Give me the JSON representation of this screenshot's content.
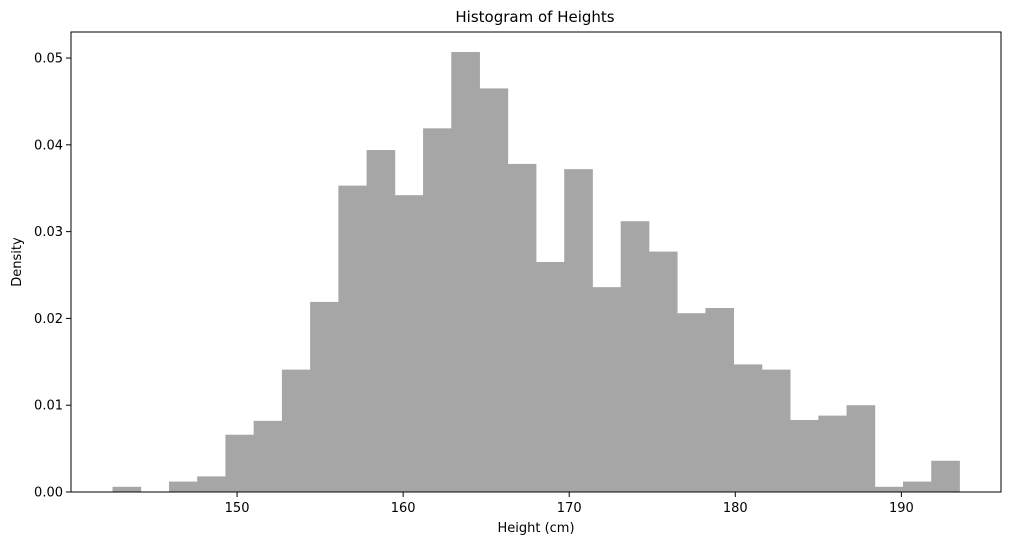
{
  "chart_data": {
    "type": "bar",
    "title": "Histogram of Heights",
    "xlabel": "Height (cm)",
    "ylabel": "Density",
    "xlim": [
      140.0,
      196.0
    ],
    "ylim": [
      0,
      0.053
    ],
    "xticks": [
      "150",
      "160",
      "170",
      "180",
      "190"
    ],
    "yticks": [
      "0.00",
      "0.01",
      "0.02",
      "0.03",
      "0.04",
      "0.05"
    ],
    "bin_start": 142.5,
    "bin_width": 1.7,
    "values": [
      0.0006,
      0.0,
      0.0012,
      0.0018,
      0.0066,
      0.0082,
      0.0141,
      0.0219,
      0.0353,
      0.0394,
      0.0342,
      0.0419,
      0.0507,
      0.0465,
      0.0378,
      0.0265,
      0.0372,
      0.0236,
      0.0312,
      0.0277,
      0.0206,
      0.0212,
      0.0147,
      0.0141,
      0.0083,
      0.0088,
      0.01,
      0.0006,
      0.0012,
      0.0036
    ],
    "bar_color": "#a6a6a6",
    "grid": false,
    "legend": "none"
  }
}
